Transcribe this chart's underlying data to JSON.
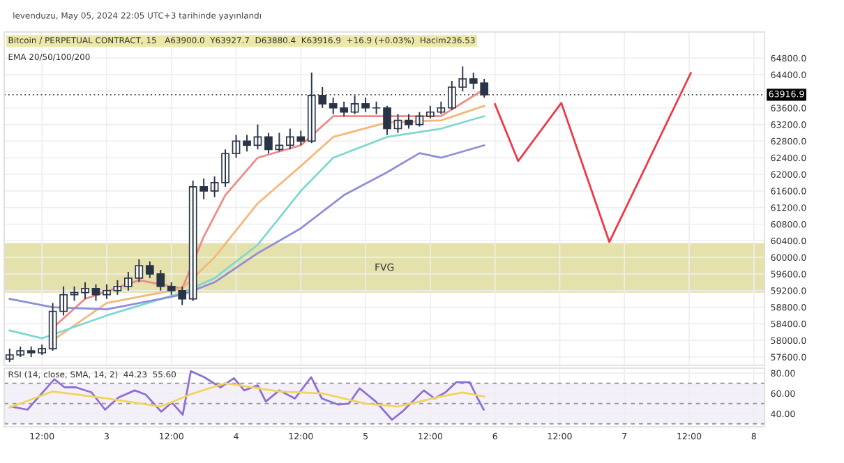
{
  "chart_data": [
    {
      "type": "candlestick",
      "title": "levenduzu, May 05, 2024 22:05 UTC+3 tarihinde yayınlandı",
      "subtitle": "Bitcoin / PERPETUAL CONTRACT, 15   A63900.0  Y63927.7  D63880.4  K63916.9  +16.9 (+0.03%)  Hacim236.53",
      "color": "#2a3447",
      "x": [
        "2024-05-02T06:00",
        "2024-05-02T08:00",
        "2024-05-02T10:00",
        "2024-05-02T12:00",
        "2024-05-02T14:00",
        "2024-05-02T16:00",
        "2024-05-02T18:00",
        "2024-05-02T20:00",
        "2024-05-02T22:00",
        "2024-05-03T00:00",
        "2024-05-03T02:00",
        "2024-05-03T04:00",
        "2024-05-03T06:00",
        "2024-05-03T08:00",
        "2024-05-03T10:00",
        "2024-05-03T12:00",
        "2024-05-03T14:00",
        "2024-05-03T16:00",
        "2024-05-03T18:00",
        "2024-05-03T20:00",
        "2024-05-03T22:00",
        "2024-05-04T00:00",
        "2024-05-04T02:00",
        "2024-05-04T04:00",
        "2024-05-04T06:00",
        "2024-05-04T08:00",
        "2024-05-04T10:00",
        "2024-05-04T12:00",
        "2024-05-04T14:00",
        "2024-05-04T16:00",
        "2024-05-04T18:00",
        "2024-05-04T20:00",
        "2024-05-04T22:00",
        "2024-05-05T00:00",
        "2024-05-05T02:00",
        "2024-05-05T04:00",
        "2024-05-05T06:00",
        "2024-05-05T08:00",
        "2024-05-05T10:00",
        "2024-05-05T12:00",
        "2024-05-05T14:00",
        "2024-05-05T16:00",
        "2024-05-05T18:00",
        "2024-05-05T20:00",
        "2024-05-05T22:00"
      ],
      "ohlc": [
        [
          57550,
          57800,
          57480,
          57650
        ],
        [
          57650,
          57850,
          57600,
          57750
        ],
        [
          57750,
          57850,
          57600,
          57700
        ],
        [
          57700,
          57900,
          57650,
          57800
        ],
        [
          57800,
          58900,
          57750,
          58700
        ],
        [
          58700,
          59300,
          58600,
          59100
        ],
        [
          59100,
          59300,
          58950,
          59150
        ],
        [
          59150,
          59400,
          59000,
          59250
        ],
        [
          59250,
          59350,
          58950,
          59100
        ],
        [
          59100,
          59350,
          59000,
          59200
        ],
        [
          59200,
          59450,
          59100,
          59300
        ],
        [
          59300,
          59650,
          59200,
          59500
        ],
        [
          59500,
          59950,
          59400,
          59800
        ],
        [
          59800,
          59900,
          59500,
          59600
        ],
        [
          59600,
          59700,
          59200,
          59300
        ],
        [
          59300,
          59400,
          59100,
          59200
        ],
        [
          59200,
          59300,
          58850,
          59000
        ],
        [
          59000,
          61850,
          58950,
          61700
        ],
        [
          61700,
          61900,
          61400,
          61600
        ],
        [
          61600,
          61950,
          61450,
          61800
        ],
        [
          61800,
          62600,
          61700,
          62500
        ],
        [
          62500,
          62950,
          62400,
          62800
        ],
        [
          62800,
          62950,
          62550,
          62700
        ],
        [
          62700,
          63200,
          62600,
          62900
        ],
        [
          62900,
          63000,
          62500,
          62600
        ],
        [
          62600,
          63000,
          62550,
          62700
        ],
        [
          62700,
          63100,
          62600,
          62900
        ],
        [
          62900,
          63050,
          62700,
          62800
        ],
        [
          62800,
          64450,
          62750,
          63900
        ],
        [
          63900,
          64100,
          63600,
          63700
        ],
        [
          63700,
          63850,
          63450,
          63600
        ],
        [
          63600,
          63750,
          63400,
          63500
        ],
        [
          63500,
          63900,
          63450,
          63700
        ],
        [
          63700,
          63850,
          63500,
          63600
        ],
        [
          63600,
          63750,
          63450,
          63600
        ],
        [
          63600,
          63650,
          62950,
          63100
        ],
        [
          63100,
          63450,
          63000,
          63300
        ],
        [
          63300,
          63450,
          63100,
          63200
        ],
        [
          63200,
          63500,
          63150,
          63400
        ],
        [
          63400,
          63650,
          63350,
          63500
        ],
        [
          63500,
          63750,
          63450,
          63600
        ],
        [
          63600,
          64250,
          63550,
          64100
        ],
        [
          64100,
          64600,
          64000,
          64300
        ],
        [
          64300,
          64450,
          64050,
          64200
        ],
        [
          64200,
          64300,
          63850,
          63917
        ]
      ],
      "series": [
        {
          "type": "line",
          "color": "#f08a8a",
          "x": [
            "2024-05-02T14:00",
            "2024-05-02T20:00",
            "2024-05-03T06:00",
            "2024-05-03T14:00",
            "2024-05-03T18:00",
            "2024-05-03T22:00",
            "2024-05-04T04:00",
            "2024-05-04T12:00",
            "2024-05-04T18:00",
            "2024-05-05T04:00",
            "2024-05-05T14:00",
            "2024-05-05T22:00"
          ],
          "values": [
            58300,
            59000,
            59450,
            59250,
            60500,
            61500,
            62400,
            62700,
            63400,
            63400,
            63400,
            64050
          ]
        },
        {
          "type": "line",
          "color": "#f5b77a",
          "x": [
            "2024-05-02T14:00",
            "2024-05-03T00:00",
            "2024-05-03T14:00",
            "2024-05-03T20:00",
            "2024-05-04T04:00",
            "2024-05-04T12:00",
            "2024-05-04T18:00",
            "2024-05-05T04:00",
            "2024-05-05T14:00",
            "2024-05-05T22:00"
          ],
          "values": [
            58000,
            58900,
            59250,
            60000,
            61300,
            62200,
            62900,
            63250,
            63300,
            63650
          ]
        },
        {
          "type": "line",
          "color": "#7fd8d0",
          "x": [
            "2024-05-02T06:00",
            "2024-05-02T12:00",
            "2024-05-03T00:00",
            "2024-05-03T14:00",
            "2024-05-03T20:00",
            "2024-05-04T04:00",
            "2024-05-04T12:00",
            "2024-05-04T18:00",
            "2024-05-05T04:00",
            "2024-05-05T14:00",
            "2024-05-05T22:00"
          ],
          "values": [
            58240,
            58050,
            58600,
            59150,
            59500,
            60300,
            61600,
            62400,
            62900,
            63100,
            63400
          ]
        },
        {
          "type": "line",
          "color": "#8f8fd8",
          "x": [
            "2024-05-02T06:00",
            "2024-05-02T14:00",
            "2024-05-03T00:00",
            "2024-05-03T14:00",
            "2024-05-03T20:00",
            "2024-05-04T04:00",
            "2024-05-04T12:00",
            "2024-05-04T20:00",
            "2024-05-05T04:00",
            "2024-05-05T10:00",
            "2024-05-05T14:00",
            "2024-05-05T22:00"
          ],
          "values": [
            59000,
            58800,
            58750,
            59100,
            59400,
            60100,
            60700,
            61500,
            62050,
            62510,
            62400,
            62700
          ]
        },
        {
          "type": "line",
          "color": "#f23645",
          "x": [
            "2024-05-06T00:00",
            "2024-05-06T04:18",
            "2024-05-06T12:18",
            "2024-05-06T21:12",
            "2024-05-07T12:18"
          ],
          "values": [
            63690,
            62320,
            63720,
            60370,
            64440
          ]
        }
      ],
      "annotations": [
        "EMA 20/50/100/200"
      ],
      "bands": [
        {
          "axis": "y",
          "from": 59150,
          "to": 60340,
          "label": "FVG",
          "color": "#d9d48a"
        }
      ],
      "ref_lines": [
        {
          "axis": "y",
          "value": 63916.9,
          "label": "63916.9",
          "color": "#555555",
          "line_style": "dotted"
        }
      ],
      "xlim": [
        "2024-05-02T05:00",
        "2024-05-08T02:00"
      ],
      "ylim": [
        57400,
        65430
      ],
      "xticks": [
        {
          "value": "2024-05-02T12:00",
          "label": null
        },
        {
          "value": "2024-05-03",
          "label": null
        },
        {
          "value": "2024-05-03T12:00",
          "label": null
        },
        {
          "value": "2024-05-04",
          "label": null
        },
        {
          "value": "2024-05-04T12:00",
          "label": null
        },
        {
          "value": "2024-05-05",
          "label": null
        },
        {
          "value": "2024-05-05T12:00",
          "label": null
        },
        {
          "value": "2024-05-06",
          "label": null
        },
        {
          "value": "2024-05-06T12:00",
          "label": null
        },
        {
          "value": "2024-05-07",
          "label": null
        },
        {
          "value": "2024-05-07T12:00",
          "label": null
        },
        {
          "value": "2024-05-08",
          "label": null
        }
      ],
      "yticks": [
        {
          "value": 57600,
          "label": "57600.0"
        },
        {
          "value": 58000,
          "label": "58000.0"
        },
        {
          "value": 58400,
          "label": "58400.0"
        },
        {
          "value": 58800,
          "label": "58800.0"
        },
        {
          "value": 59200,
          "label": "59200.0"
        },
        {
          "value": 59600,
          "label": "59600.0"
        },
        {
          "value": 60000,
          "label": "60000.0"
        },
        {
          "value": 60400,
          "label": "60400.0"
        },
        {
          "value": 60800,
          "label": "60800.0"
        },
        {
          "value": 61200,
          "label": "61200.0"
        },
        {
          "value": 61600,
          "label": "61600.0"
        },
        {
          "value": 62000,
          "label": "62000.0"
        },
        {
          "value": 62400,
          "label": "62400.0"
        },
        {
          "value": 62800,
          "label": "62800.0"
        },
        {
          "value": 63200,
          "label": "63200.0"
        },
        {
          "value": 63600,
          "label": "63600.0"
        },
        {
          "value": 64000,
          "label": null
        },
        {
          "value": 64400,
          "label": "64400.0"
        },
        {
          "value": 64800,
          "label": "64800.0"
        }
      ],
      "grid": true,
      "tick_labels": "y"
    },
    {
      "type": "line",
      "title": "RSI (14, close, SMA, 14, 2)  44.23  55.60",
      "series": [
        {
          "color": "#8e6fd6",
          "x": [
            "2024-05-02T06:18",
            "2024-05-02T09:18",
            "2024-05-02T11:48",
            "2024-05-02T14:18",
            "2024-05-02T16:12",
            "2024-05-02T18:18",
            "2024-05-02T21:12",
            "2024-05-02T23:42",
            "2024-05-03T02:12",
            "2024-05-03T05:12",
            "2024-05-03T07:12",
            "2024-05-03T10:06",
            "2024-05-03T12:06",
            "2024-05-03T14:06",
            "2024-05-03T15:36",
            "2024-05-03T18:06",
            "2024-05-03T21:06",
            "2024-05-03T23:36",
            "2024-05-04T01:30",
            "2024-05-04T04:00",
            "2024-05-04T05:30",
            "2024-05-04T08:00",
            "2024-05-04T10:54",
            "2024-05-04T13:54",
            "2024-05-04T15:54",
            "2024-05-04T18:54",
            "2024-05-04T20:54",
            "2024-05-04T22:54",
            "2024-05-05T01:54",
            "2024-05-05T04:54",
            "2024-05-05T06:48",
            "2024-05-05T10:48",
            "2024-05-05T12:48",
            "2024-05-05T14:48",
            "2024-05-05T16:48",
            "2024-05-05T19:18",
            "2024-05-05T20:48",
            "2024-05-05T21:54"
          ],
          "values": [
            47,
            44,
            59,
            74,
            66,
            66,
            61,
            44,
            56,
            63,
            59,
            42,
            51,
            39,
            82,
            76,
            66,
            75,
            63,
            68,
            52,
            63,
            55,
            76,
            55,
            49,
            50,
            65,
            52,
            34,
            42,
            63,
            55,
            61,
            71,
            71,
            55,
            44
          ]
        },
        {
          "color": "#f0d55a",
          "x": [
            "2024-05-02T06:00",
            "2024-05-02T14:00",
            "2024-05-03T00:00",
            "2024-05-03T10:00",
            "2024-05-03T16:00",
            "2024-05-03T22:00",
            "2024-05-04T08:00",
            "2024-05-04T16:00",
            "2024-05-05T00:00",
            "2024-05-05T06:00",
            "2024-05-05T14:00",
            "2024-05-05T18:00",
            "2024-05-05T22:00"
          ],
          "values": [
            46,
            62,
            55,
            47,
            60,
            70,
            62,
            60,
            50,
            47,
            57,
            61,
            57
          ]
        }
      ],
      "ref_lines": [
        {
          "axis": "y",
          "value": 70,
          "color": "#999999",
          "line_style": "dashed"
        },
        {
          "axis": "y",
          "value": 50,
          "color": "#999999",
          "line_style": "dashed"
        },
        {
          "axis": "y",
          "value": 30,
          "color": "#999999",
          "line_style": "dashed"
        }
      ],
      "bands": [
        {
          "axis": "y",
          "from": 30,
          "to": 70,
          "color": "#efeaf8"
        }
      ],
      "xlim": [
        "2024-05-02T05:00",
        "2024-05-08T02:00"
      ],
      "ylim": [
        27,
        85
      ],
      "xticks": [
        {
          "value": "2024-05-02T12:00",
          "label": "12:00"
        },
        {
          "value": "2024-05-03",
          "label": "3"
        },
        {
          "value": "2024-05-03T12:00",
          "label": "12:00"
        },
        {
          "value": "2024-05-04",
          "label": "4"
        },
        {
          "value": "2024-05-04T12:00",
          "label": "12:00"
        },
        {
          "value": "2024-05-05",
          "label": "5"
        },
        {
          "value": "2024-05-05T12:00",
          "label": "12:00"
        },
        {
          "value": "2024-05-06",
          "label": "6"
        },
        {
          "value": "2024-05-06T12:00",
          "label": "12:00"
        },
        {
          "value": "2024-05-07",
          "label": "7"
        },
        {
          "value": "2024-05-07T12:00",
          "label": "12:00"
        },
        {
          "value": "2024-05-08",
          "label": "8"
        }
      ],
      "yticks": [
        {
          "value": 40,
          "label": "40.00"
        },
        {
          "value": 60,
          "label": "60.00"
        },
        {
          "value": 80,
          "label": "80.00"
        }
      ],
      "grid": true
    }
  ]
}
